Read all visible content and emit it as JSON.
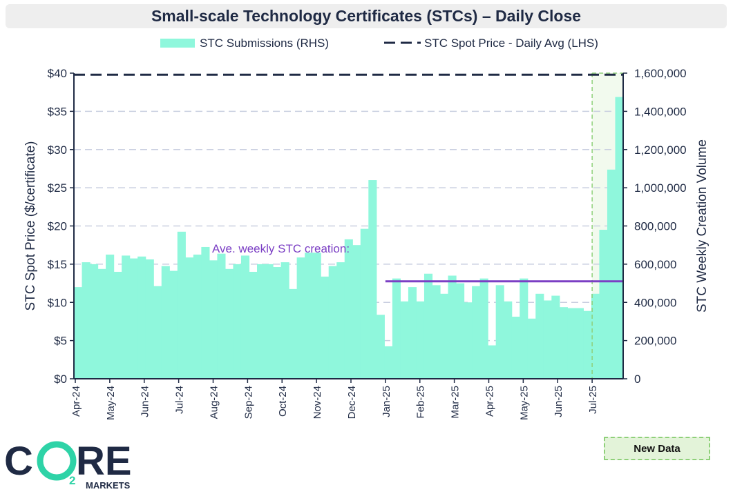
{
  "chart_data": {
    "type": "bar",
    "title": "Small-scale Technology Certificates (STCs) – Daily Close",
    "ylabel_left": "STC Spot Price ($/certificate)",
    "ylabel_right": "STC Weekly Creation Volume",
    "ylim_left": [
      0,
      40
    ],
    "ylim_right": [
      0,
      1600000
    ],
    "yticks_left": [
      "$0",
      "$5",
      "$10",
      "$15",
      "$20",
      "$25",
      "$30",
      "$35",
      "$40"
    ],
    "yticks_right": [
      "0",
      "200,000",
      "400,000",
      "600,000",
      "800,000",
      "1,000,000",
      "1,200,000",
      "1,400,000",
      "1,600,000"
    ],
    "x_tick_labels": [
      "Apr-24",
      "May-24",
      "Jun-24",
      "Jul-24",
      "Aug-24",
      "Sep-24",
      "Oct-24",
      "Nov-24",
      "Dec-24",
      "Jan-25",
      "Feb-25",
      "Mar-25",
      "Apr-25",
      "May-25",
      "Jun-25",
      "Jul-25"
    ],
    "grid": "horizontal dashed",
    "legend_position": "top",
    "legend": {
      "bars": "STC Submissions (RHS)",
      "line": "STC Spot Price - Daily Avg (LHS)"
    },
    "series": [
      {
        "name": "STC Submissions (RHS)",
        "axis": "right",
        "kind": "bar",
        "color": "#8ff7dc",
        "values": [
          480000,
          610000,
          600000,
          575000,
          650000,
          560000,
          645000,
          630000,
          640000,
          625000,
          485000,
          590000,
          565000,
          770000,
          635000,
          650000,
          690000,
          620000,
          655000,
          575000,
          600000,
          645000,
          560000,
          600000,
          600000,
          585000,
          610000,
          470000,
          635000,
          660000,
          660000,
          535000,
          590000,
          610000,
          730000,
          700000,
          785000,
          1040000,
          335000,
          170000,
          525000,
          405000,
          480000,
          405000,
          550000,
          490000,
          445000,
          540000,
          500000,
          400000,
          485000,
          525000,
          175000,
          490000,
          405000,
          325000,
          525000,
          315000,
          445000,
          410000,
          435000,
          375000,
          370000,
          370000,
          355000,
          445000,
          780000,
          1095000,
          1475000
        ]
      },
      {
        "name": "STC Spot Price - Daily Avg (LHS)",
        "axis": "left",
        "kind": "line",
        "style": "dashed",
        "color": "#1f2a44",
        "values": [
          39.8,
          39.8
        ]
      }
    ],
    "annotations": [
      {
        "text": "Ave. weekly STC creation:",
        "color": "#7b3fc4"
      },
      {
        "type": "hline",
        "axis": "right",
        "value": 510000,
        "x_from": "Jan-25",
        "x_to": "end",
        "color": "#7b3fc4"
      },
      {
        "type": "shaded_region",
        "label": "New Data",
        "x_from": "Jul-25",
        "x_to": "end",
        "color": "#e3f3d9"
      }
    ]
  },
  "logo": {
    "text_left": "C",
    "text_right": "RE",
    "subscript": "2",
    "tagline": "MARKETS",
    "colors": {
      "dark": "#1f2a44",
      "accent": "#2ed3a7"
    }
  },
  "new_data_label": "New Data",
  "colors": {
    "navy": "#1f2a44",
    "mint": "#8ff7dc",
    "purple": "#7b3fc4",
    "green_box": "#e3f3d9",
    "green_dash": "#8fd07a"
  }
}
